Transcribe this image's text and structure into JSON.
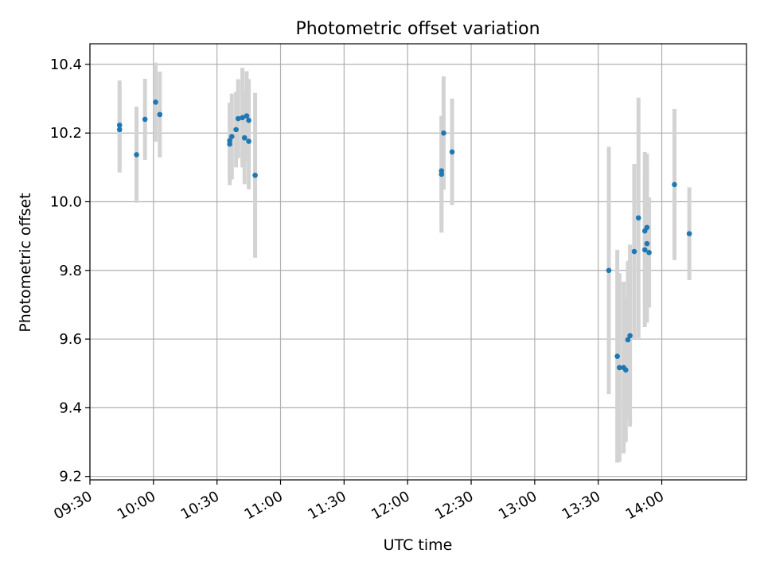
{
  "chart_data": {
    "type": "scatter",
    "title": "Photometric offset variation",
    "xlabel": "UTC time",
    "ylabel": "Photometric offset",
    "xlim": [
      "09:30",
      "14:40"
    ],
    "ylim": [
      9.19,
      10.46
    ],
    "x_ticks": [
      "09:30",
      "10:00",
      "10:30",
      "11:00",
      "11:30",
      "12:00",
      "12:30",
      "13:00",
      "13:30",
      "14:00"
    ],
    "y_ticks": [
      9.2,
      9.4,
      9.6,
      9.8,
      10.0,
      10.2,
      10.4
    ],
    "y_tick_labels": [
      "9.2",
      "9.4",
      "9.6",
      "9.8",
      "10.0",
      "10.2",
      "10.4"
    ],
    "grid": true,
    "colors": {
      "point": "#1f77b4",
      "error_bar": "#d3d3d3",
      "grid": "#b0b0b0"
    },
    "points": [
      {
        "x": "09:44",
        "y": 10.21,
        "yerr": 0.125
      },
      {
        "x": "09:44",
        "y": 10.223,
        "yerr": 0.13
      },
      {
        "x": "09:52",
        "y": 10.137,
        "yerr": 0.14
      },
      {
        "x": "09:56",
        "y": 10.24,
        "yerr": 0.118
      },
      {
        "x": "10:01",
        "y": 10.29,
        "yerr": 0.115
      },
      {
        "x": "10:03",
        "y": 10.254,
        "yerr": 0.125
      },
      {
        "x": "10:36",
        "y": 10.168,
        "yerr": 0.12
      },
      {
        "x": "10:36",
        "y": 10.178,
        "yerr": 0.11
      },
      {
        "x": "10:37",
        "y": 10.19,
        "yerr": 0.125
      },
      {
        "x": "10:39",
        "y": 10.21,
        "yerr": 0.11
      },
      {
        "x": "10:40",
        "y": 10.242,
        "yerr": 0.115
      },
      {
        "x": "10:42",
        "y": 10.245,
        "yerr": 0.145
      },
      {
        "x": "10:43",
        "y": 10.186,
        "yerr": 0.135
      },
      {
        "x": "10:44",
        "y": 10.25,
        "yerr": 0.13
      },
      {
        "x": "10:45",
        "y": 10.237,
        "yerr": 0.12
      },
      {
        "x": "10:45",
        "y": 10.176,
        "yerr": 0.14
      },
      {
        "x": "10:48",
        "y": 10.077,
        "yerr": 0.24
      },
      {
        "x": "12:16",
        "y": 10.08,
        "yerr": 0.17
      },
      {
        "x": "12:16",
        "y": 10.09,
        "yerr": 0.16
      },
      {
        "x": "12:17",
        "y": 10.2,
        "yerr": 0.165
      },
      {
        "x": "12:21",
        "y": 10.145,
        "yerr": 0.155
      },
      {
        "x": "13:35",
        "y": 9.8,
        "yerr": 0.36
      },
      {
        "x": "13:39",
        "y": 9.55,
        "yerr": 0.31
      },
      {
        "x": "13:40",
        "y": 9.517,
        "yerr": 0.275
      },
      {
        "x": "13:42",
        "y": 9.517,
        "yerr": 0.25
      },
      {
        "x": "13:43",
        "y": 9.51,
        "yerr": 0.21
      },
      {
        "x": "13:44",
        "y": 9.598,
        "yerr": 0.23
      },
      {
        "x": "13:45",
        "y": 9.61,
        "yerr": 0.265
      },
      {
        "x": "13:47",
        "y": 9.855,
        "yerr": 0.255
      },
      {
        "x": "13:49",
        "y": 9.953,
        "yerr": 0.35
      },
      {
        "x": "13:52",
        "y": 9.86,
        "yerr": 0.225
      },
      {
        "x": "13:52",
        "y": 9.915,
        "yerr": 0.23
      },
      {
        "x": "13:53",
        "y": 9.925,
        "yerr": 0.215
      },
      {
        "x": "13:53",
        "y": 9.878,
        "yerr": 0.23
      },
      {
        "x": "13:54",
        "y": 9.852,
        "yerr": 0.16
      },
      {
        "x": "14:06",
        "y": 10.05,
        "yerr": 0.22
      },
      {
        "x": "14:13",
        "y": 9.907,
        "yerr": 0.135
      }
    ]
  }
}
